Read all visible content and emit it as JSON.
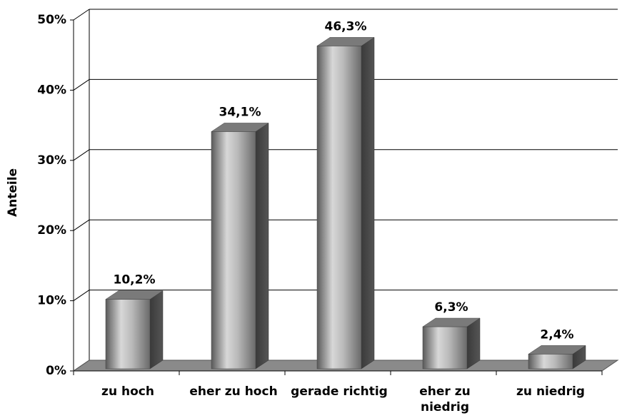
{
  "chart_data": {
    "type": "bar3d",
    "y_label": "Anteile",
    "categories": [
      "zu hoch",
      "eher zu hoch",
      "gerade richtig",
      "eher zu\nniedrig",
      "zu niedrig"
    ],
    "values": [
      10.2,
      34.1,
      46.3,
      6.3,
      2.4
    ],
    "value_labels": [
      "10,2%",
      "34,1%",
      "46,3%",
      "6,3%",
      "2,4%"
    ],
    "color": "#a0a0a0",
    "ylim": [
      0,
      50
    ],
    "yticks": [
      {
        "value": 0,
        "label": "0%"
      },
      {
        "value": 10,
        "label": "10%"
      },
      {
        "value": 20,
        "label": "20%"
      },
      {
        "value": 30,
        "label": "30%"
      },
      {
        "value": 40,
        "label": "40%"
      },
      {
        "value": 50,
        "label": "50%"
      }
    ],
    "grid": true
  }
}
